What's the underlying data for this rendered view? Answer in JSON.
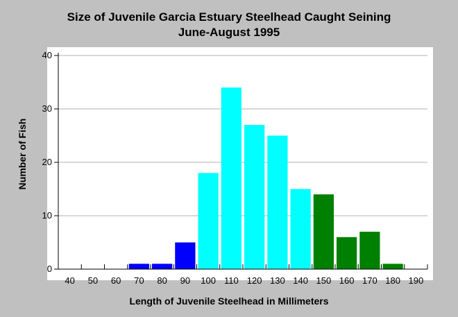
{
  "chart_data": {
    "type": "bar",
    "title": "Size of Juvenile Garcia Estuary Steelhead Caught Seining",
    "subtitle": "June-August 1995",
    "xlabel": "Length of Juvenile Steelhead in Millimeters",
    "ylabel": "Number of Fish",
    "categories": [
      "40",
      "50",
      "60",
      "70",
      "80",
      "90",
      "100",
      "110",
      "120",
      "130",
      "140",
      "150",
      "160",
      "170",
      "180",
      "190"
    ],
    "values": [
      0,
      0,
      0,
      1,
      1,
      5,
      18,
      34,
      27,
      25,
      15,
      14,
      6,
      7,
      1,
      0
    ],
    "bar_colors": [
      "#0000ff",
      "#0000ff",
      "#0000ff",
      "#0000ff",
      "#0000ff",
      "#0000ff",
      "#00ffff",
      "#00ffff",
      "#00ffff",
      "#00ffff",
      "#00ffff",
      "#008000",
      "#008000",
      "#008000",
      "#008000",
      "#008000"
    ],
    "ylim": [
      0,
      40
    ],
    "yticks": [
      0,
      10,
      20,
      30,
      40
    ],
    "grid": true,
    "legend": "none",
    "plot_background": "#ffffff",
    "page_background": "#c0c0c0"
  }
}
